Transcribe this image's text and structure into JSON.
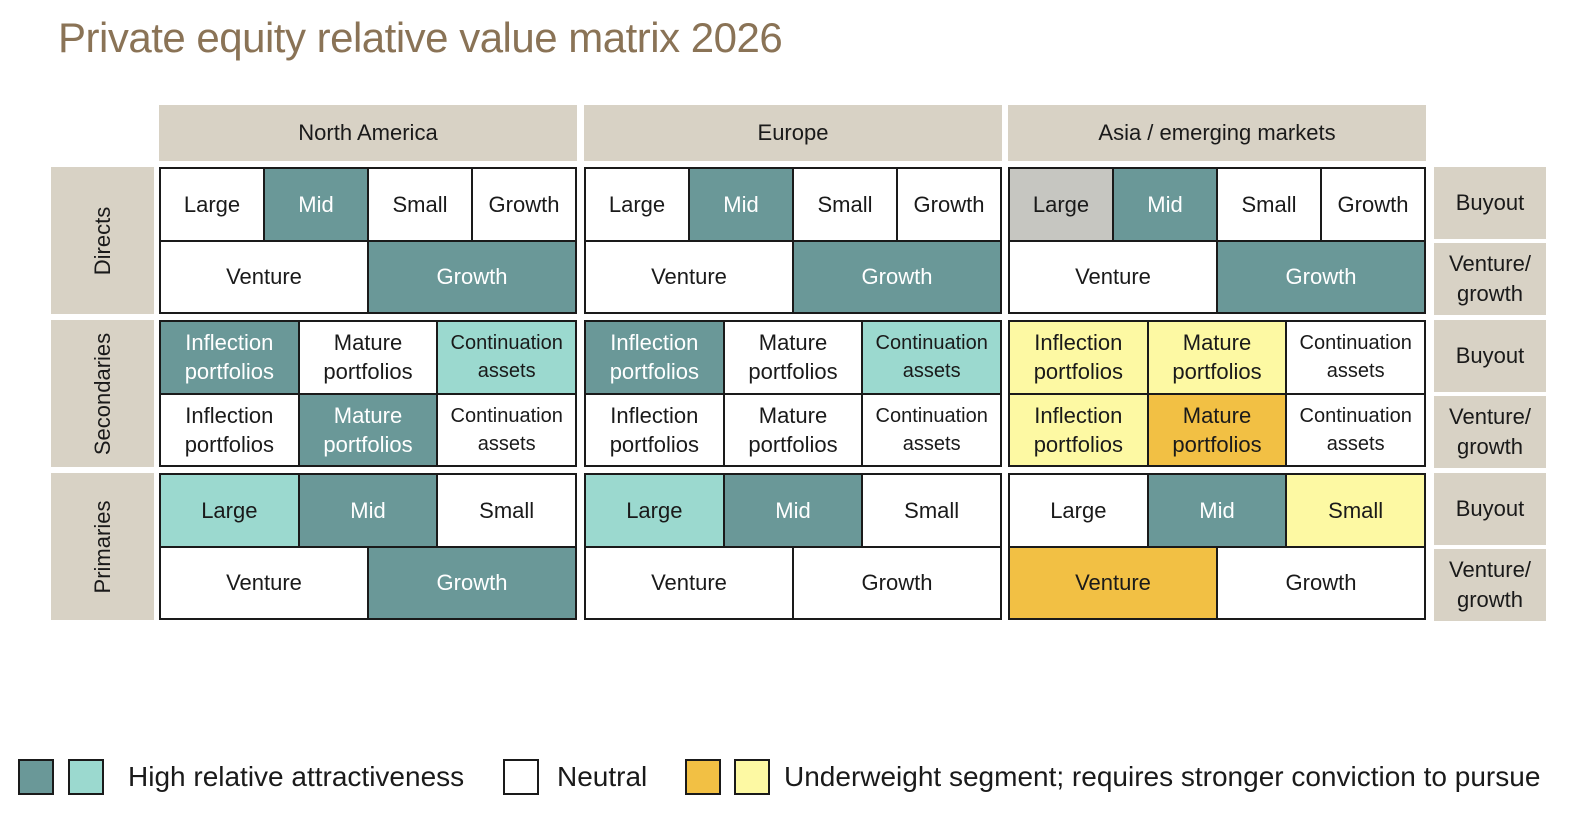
{
  "title": "Private equity relative value matrix 2026",
  "regions": [
    "North America",
    "Europe",
    "Asia / emerging markets"
  ],
  "strategies": [
    "Directs",
    "Secondaries",
    "Primaries"
  ],
  "side_labels": [
    "Buyout",
    "Venture/\ngrowth",
    "Buyout",
    "Venture/\ngrowth",
    "Buyout",
    "Venture/\ngrowth"
  ],
  "colors": {
    "high_dark": "#6a9898",
    "high_light": "#9bd9cf",
    "neutral": "#ffffff",
    "gray": "#c6c6c1",
    "underweight_orange": "#f2c044",
    "underweight_yellow": "#fdf9a3",
    "header_bg": "#d8d2c5",
    "title": "#8a7356"
  },
  "chart_data": {
    "type": "table",
    "title": "Private equity relative value matrix 2026",
    "columns": [
      "North America",
      "Europe",
      "Asia / emerging markets"
    ],
    "rows": [
      "Directs",
      "Secondaries",
      "Primaries"
    ],
    "row_sublabels": [
      "Buyout",
      "Venture/growth"
    ],
    "matrix": [
      [
        [
          [
            {
              "label": "Large",
              "rating": "neutral"
            },
            {
              "label": "Mid",
              "rating": "high_dark"
            },
            {
              "label": "Small",
              "rating": "neutral"
            },
            {
              "label": "Growth",
              "rating": "neutral"
            }
          ],
          [
            {
              "label": "Venture",
              "rating": "neutral"
            },
            {
              "label": "Growth",
              "rating": "high_dark"
            }
          ]
        ],
        [
          [
            {
              "label": "Large",
              "rating": "neutral"
            },
            {
              "label": "Mid",
              "rating": "high_dark"
            },
            {
              "label": "Small",
              "rating": "neutral"
            },
            {
              "label": "Growth",
              "rating": "neutral"
            }
          ],
          [
            {
              "label": "Venture",
              "rating": "neutral"
            },
            {
              "label": "Growth",
              "rating": "high_dark"
            }
          ]
        ],
        [
          [
            {
              "label": "Large",
              "rating": "gray"
            },
            {
              "label": "Mid",
              "rating": "high_dark"
            },
            {
              "label": "Small",
              "rating": "neutral"
            },
            {
              "label": "Growth",
              "rating": "neutral"
            }
          ],
          [
            {
              "label": "Venture",
              "rating": "neutral"
            },
            {
              "label": "Growth",
              "rating": "high_dark"
            }
          ]
        ]
      ],
      [
        [
          [
            {
              "label": "Inflection\nportfolios",
              "rating": "high_dark"
            },
            {
              "label": "Mature\nportfolios",
              "rating": "neutral"
            },
            {
              "label": "Continuation\nassets",
              "rating": "high_light"
            }
          ],
          [
            {
              "label": "Inflection\nportfolios",
              "rating": "neutral"
            },
            {
              "label": "Mature\nportfolios",
              "rating": "high_dark"
            },
            {
              "label": "Continuation\nassets",
              "rating": "neutral"
            }
          ]
        ],
        [
          [
            {
              "label": "Inflection\nportfolios",
              "rating": "high_dark"
            },
            {
              "label": "Mature\nportfolios",
              "rating": "neutral"
            },
            {
              "label": "Continuation\nassets",
              "rating": "high_light"
            }
          ],
          [
            {
              "label": "Inflection\nportfolios",
              "rating": "neutral"
            },
            {
              "label": "Mature\nportfolios",
              "rating": "neutral"
            },
            {
              "label": "Continuation\nassets",
              "rating": "neutral"
            }
          ]
        ],
        [
          [
            {
              "label": "Inflection\nportfolios",
              "rating": "underweight_yellow"
            },
            {
              "label": "Mature\nportfolios",
              "rating": "underweight_yellow"
            },
            {
              "label": "Continuation\nassets",
              "rating": "neutral"
            }
          ],
          [
            {
              "label": "Inflection\nportfolios",
              "rating": "underweight_yellow"
            },
            {
              "label": "Mature\nportfolios",
              "rating": "underweight_orange"
            },
            {
              "label": "Continuation\nassets",
              "rating": "neutral"
            }
          ]
        ]
      ],
      [
        [
          [
            {
              "label": "Large",
              "rating": "high_light"
            },
            {
              "label": "Mid",
              "rating": "high_dark"
            },
            {
              "label": "Small",
              "rating": "neutral"
            }
          ],
          [
            {
              "label": "Venture",
              "rating": "neutral"
            },
            {
              "label": "Growth",
              "rating": "high_dark"
            }
          ]
        ],
        [
          [
            {
              "label": "Large",
              "rating": "high_light"
            },
            {
              "label": "Mid",
              "rating": "high_dark"
            },
            {
              "label": "Small",
              "rating": "neutral"
            }
          ],
          [
            {
              "label": "Venture",
              "rating": "neutral"
            },
            {
              "label": "Growth",
              "rating": "neutral"
            }
          ]
        ],
        [
          [
            {
              "label": "Large",
              "rating": "neutral"
            },
            {
              "label": "Mid",
              "rating": "high_dark"
            },
            {
              "label": "Small",
              "rating": "underweight_yellow"
            }
          ],
          [
            {
              "label": "Venture",
              "rating": "underweight_orange"
            },
            {
              "label": "Growth",
              "rating": "neutral"
            }
          ]
        ]
      ]
    ]
  },
  "legend": {
    "high": "High relative attractiveness",
    "neutral": "Neutral",
    "underweight": "Underweight segment; requires stronger conviction to pursue"
  }
}
